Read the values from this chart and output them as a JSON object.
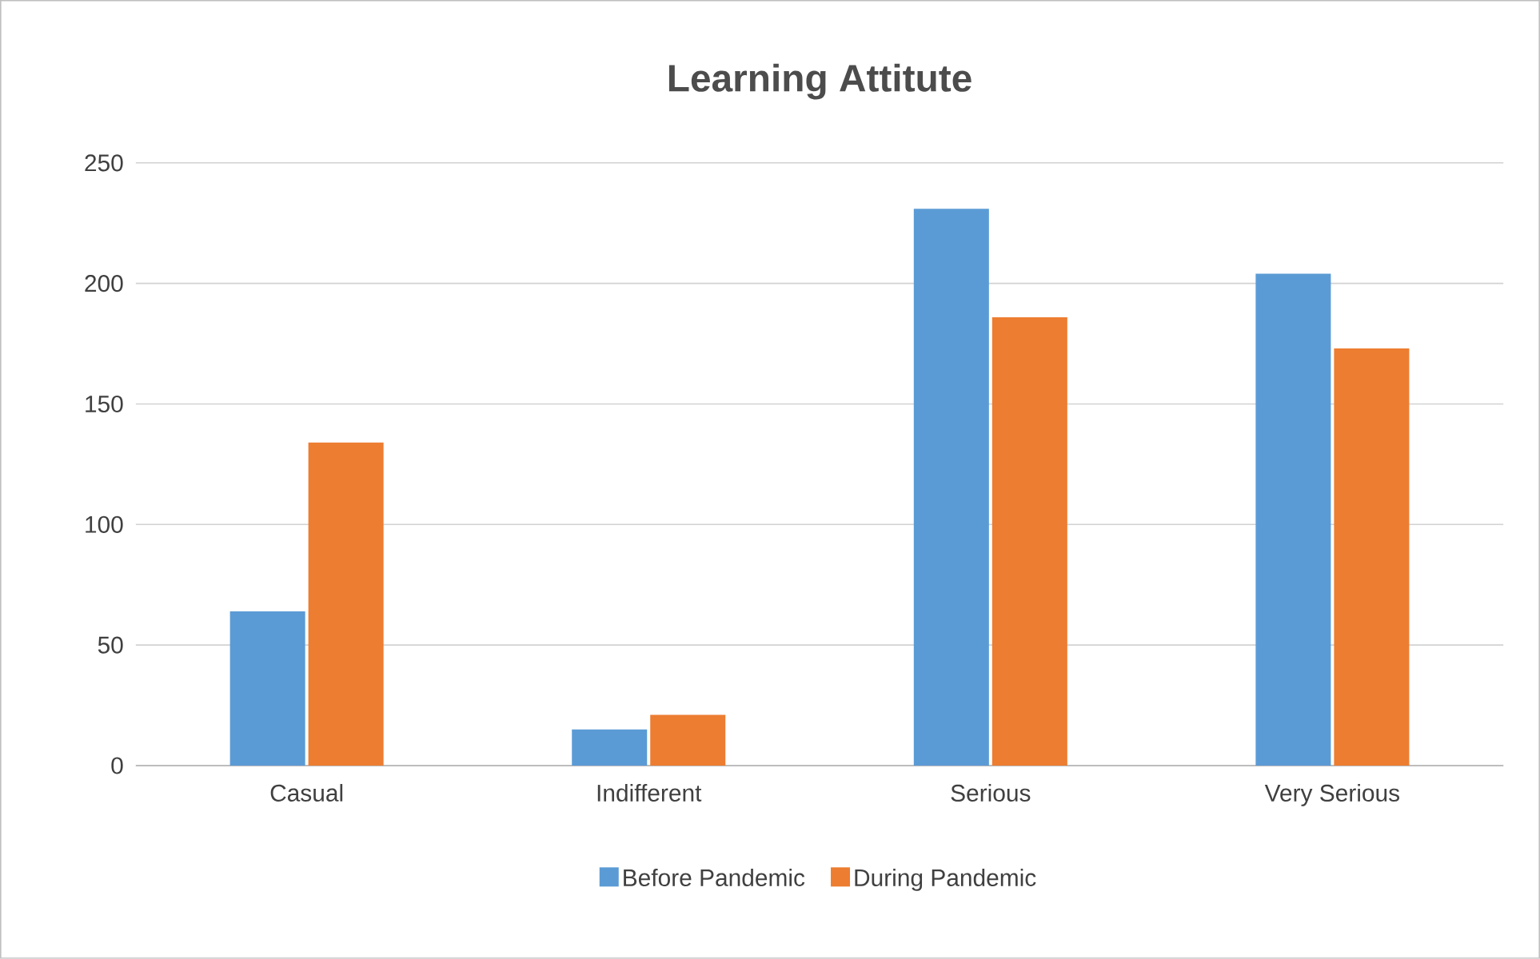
{
  "chart_data": {
    "type": "bar",
    "title": "Learning Attitute",
    "categories": [
      "Casual",
      "Indifferent",
      "Serious",
      "Very Serious"
    ],
    "series": [
      {
        "name": "Before Pandemic",
        "color": "#5b9bd5",
        "values": [
          64,
          15,
          231,
          204
        ]
      },
      {
        "name": "During Pandemic",
        "color": "#ed7d31",
        "values": [
          134,
          21,
          186,
          173
        ]
      }
    ],
    "ylim": [
      0,
      250
    ],
    "yticks": [
      0,
      50,
      100,
      150,
      200,
      250
    ],
    "grid": "y",
    "legend": "bottom"
  }
}
